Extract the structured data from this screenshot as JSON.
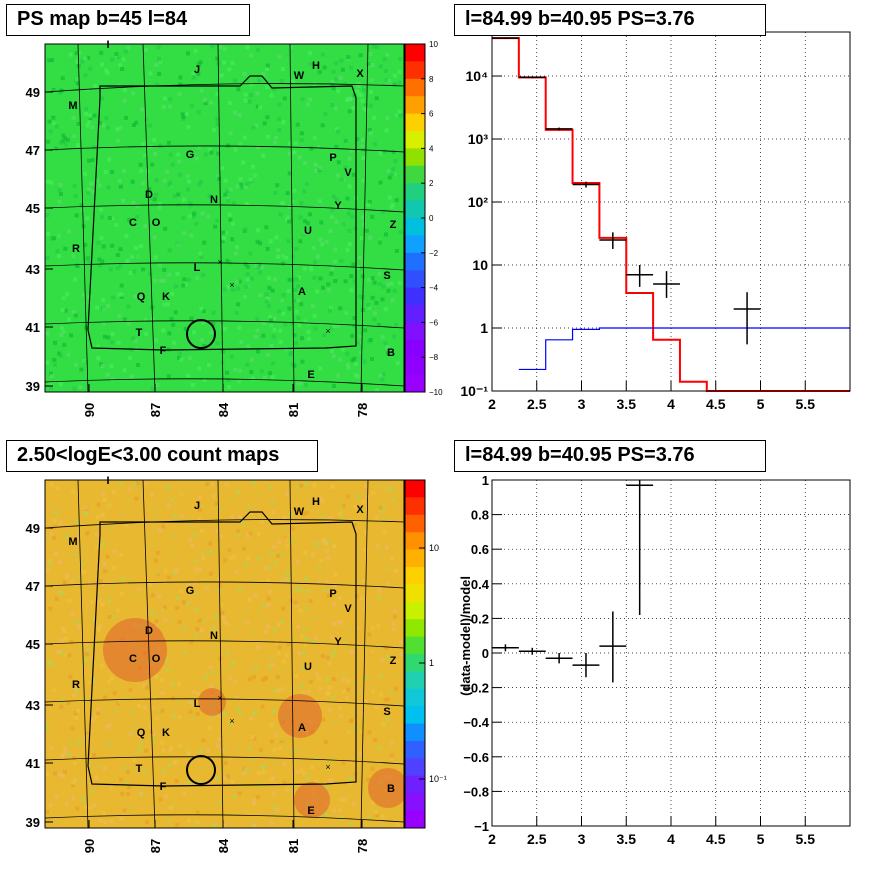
{
  "panels": {
    "ps_map": {
      "title": "PS map b=45 l=84"
    },
    "spectrum": {
      "title": "l=84.99 b=40.95 PS=3.76"
    },
    "count_map": {
      "title": "2.50<logE<3.00 count maps"
    },
    "residual": {
      "title": "l=84.99 b=40.95 PS=3.76"
    }
  },
  "colors": {
    "ps_map_bg": "#33dd44",
    "count_map_bg": "#e8b830",
    "data": "#000000",
    "model_total": "#ff0000",
    "model_bg": "#0000ff",
    "grid": "#000000"
  },
  "sky_maps": {
    "x_ticks": [
      "90",
      "87",
      "84",
      "81",
      "78"
    ],
    "y_ticks": [
      "49",
      "47",
      "45",
      "43",
      "41",
      "39"
    ],
    "source_labels": [
      "I",
      "J",
      "W",
      "H",
      "X",
      "M",
      "G",
      "P",
      "V",
      "D",
      "N",
      "Y",
      "C",
      "O",
      "Z",
      "U",
      "R",
      "L",
      "S",
      "Q",
      "K",
      "A",
      "T",
      "F",
      "B",
      "E"
    ],
    "ps_colorbar_ticks": [
      "10",
      "8",
      "6",
      "4",
      "2",
      "0",
      "−2",
      "−4",
      "−6",
      "−8",
      "−10"
    ],
    "count_colorbar_ticks": [
      "10",
      "1",
      "10⁻¹"
    ]
  },
  "chart_data": [
    {
      "type": "line",
      "panel": "spectrum",
      "title": "l=84.99 b=40.95 PS=3.76",
      "yscale": "log",
      "xlim": [
        2,
        6
      ],
      "ylim": [
        0.1,
        50000
      ],
      "x_ticks": [
        "2",
        "2.5",
        "3",
        "3.5",
        "4",
        "4.5",
        "5",
        "5.5"
      ],
      "y_ticks": [
        "10⁻¹",
        "1",
        "10",
        "10²",
        "10³",
        "10⁴"
      ],
      "grid": true,
      "series": [
        {
          "kind": "step",
          "color": "#ff0000",
          "bins": [
            [
              2.0,
              2.3,
              40000
            ],
            [
              2.3,
              2.6,
              9500
            ],
            [
              2.6,
              2.9,
              1400
            ],
            [
              2.9,
              3.2,
              200
            ],
            [
              3.2,
              3.5,
              27
            ],
            [
              3.5,
              3.8,
              3.6
            ],
            [
              3.8,
              4.1,
              0.65
            ],
            [
              4.1,
              4.4,
              0.14
            ],
            [
              4.4,
              6.0,
              0.1
            ]
          ]
        },
        {
          "kind": "step",
          "color": "#0000ff",
          "bins": [
            [
              2.3,
              2.6,
              0.22
            ],
            [
              2.6,
              2.9,
              0.65
            ],
            [
              2.9,
              3.2,
              0.95
            ],
            [
              3.2,
              6.0,
              1.0
            ]
          ]
        },
        {
          "kind": "points",
          "color": "#000000",
          "points": [
            {
              "x": 2.15,
              "y": 40000,
              "xerr": 0.15,
              "ylo": 39000,
              "yhi": 41000
            },
            {
              "x": 2.45,
              "y": 9500,
              "xerr": 0.15,
              "ylo": 9200,
              "yhi": 9800
            },
            {
              "x": 2.75,
              "y": 1450,
              "xerr": 0.15,
              "ylo": 1380,
              "yhi": 1520
            },
            {
              "x": 3.05,
              "y": 190,
              "xerr": 0.15,
              "ylo": 170,
              "yhi": 210
            },
            {
              "x": 3.35,
              "y": 25,
              "xerr": 0.15,
              "ylo": 18,
              "yhi": 33
            },
            {
              "x": 3.65,
              "y": 7,
              "xerr": 0.15,
              "ylo": 4.5,
              "yhi": 10
            },
            {
              "x": 3.95,
              "y": 5,
              "xerr": 0.15,
              "ylo": 3,
              "yhi": 8
            },
            {
              "x": 4.85,
              "y": 2,
              "xerr": 0.15,
              "ylo": 0.55,
              "yhi": 3.7
            }
          ]
        }
      ]
    },
    {
      "type": "scatter",
      "panel": "residual",
      "title": "l=84.99 b=40.95 PS=3.76",
      "xlim": [
        2,
        6
      ],
      "ylim": [
        -1,
        1
      ],
      "ylabel": "(data-model)/model",
      "x_ticks": [
        "2",
        "2.5",
        "3",
        "3.5",
        "4",
        "4.5",
        "5",
        "5.5"
      ],
      "y_ticks": [
        "−1",
        "−0.8",
        "−0.6",
        "−0.4",
        "−0.2",
        "0",
        "0.2",
        "0.4",
        "0.6",
        "0.8",
        "1"
      ],
      "grid": true,
      "points": [
        {
          "x": 2.15,
          "y": 0.03,
          "xerr": 0.15,
          "ylo": 0.01,
          "yhi": 0.05
        },
        {
          "x": 2.45,
          "y": 0.01,
          "xerr": 0.15,
          "ylo": -0.01,
          "yhi": 0.03
        },
        {
          "x": 2.75,
          "y": -0.03,
          "xerr": 0.15,
          "ylo": -0.06,
          "yhi": 0.0
        },
        {
          "x": 3.05,
          "y": -0.07,
          "xerr": 0.15,
          "ylo": -0.14,
          "yhi": 0.0
        },
        {
          "x": 3.35,
          "y": 0.04,
          "xerr": 0.15,
          "ylo": -0.17,
          "yhi": 0.24
        },
        {
          "x": 3.65,
          "y": 0.97,
          "xerr": 0.15,
          "ylo": 0.22,
          "yhi": 1.0
        }
      ]
    }
  ]
}
